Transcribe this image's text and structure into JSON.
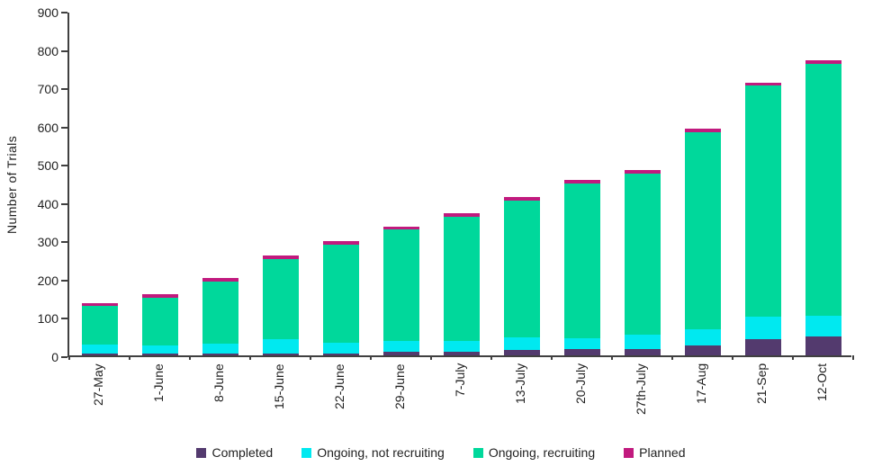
{
  "chart_data": {
    "type": "bar",
    "stacked": true,
    "title": "",
    "ylabel": "Number of Trials",
    "xlabel": "",
    "ylim": [
      0,
      900
    ],
    "ytick_step": 100,
    "grid": false,
    "legend_position": "bottom",
    "categories": [
      "27-May",
      "1-June",
      "8-June",
      "15-June",
      "22-June",
      "29-June",
      "7-July",
      "13-July",
      "20-July",
      "27th-July",
      "17-Aug",
      "21-Sep",
      "12-Oct"
    ],
    "series": [
      {
        "name": "Completed",
        "color": "#533A6E",
        "values": [
          5,
          5,
          5,
          5,
          5,
          10,
          10,
          14,
          16,
          16,
          25,
          43,
          50
        ]
      },
      {
        "name": "Ongoing, not recruiting",
        "color": "#00E9F0",
        "values": [
          23,
          22,
          25,
          37,
          27,
          28,
          28,
          33,
          29,
          38,
          43,
          58,
          53
        ]
      },
      {
        "name": "Ongoing, recruiting",
        "color": "#00D89B",
        "values": [
          101,
          124,
          162,
          209,
          256,
          291,
          325,
          357,
          404,
          421,
          514,
          603,
          659
        ]
      },
      {
        "name": "Planned",
        "color": "#C11A7E",
        "values": [
          8,
          9,
          9,
          10,
          10,
          8,
          9,
          9,
          9,
          9,
          10,
          9,
          9
        ]
      }
    ],
    "totals": [
      137,
      160,
      201,
      261,
      298,
      337,
      372,
      413,
      458,
      484,
      592,
      713,
      771
    ]
  },
  "colors": {
    "axis": "#404040",
    "text": "#1f1f1f",
    "background": "#ffffff"
  }
}
